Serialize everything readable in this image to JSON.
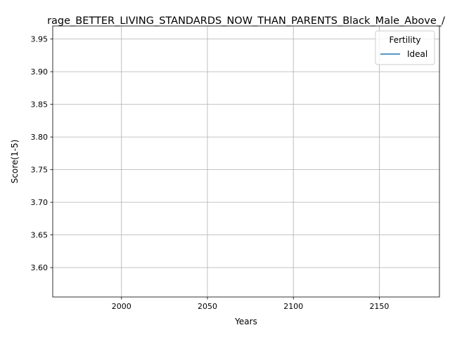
{
  "chart_data": {
    "type": "line",
    "title": "rage_BETTER_LIVING_STANDARDS_NOW_THAN_PARENTS_Black_Male_Above_/",
    "xlabel": "Years",
    "ylabel": "Score(1-5)",
    "xlim": [
      1960,
      2185
    ],
    "ylim": [
      3.555,
      3.97
    ],
    "xticks": [
      2000,
      2050,
      2100,
      2150
    ],
    "xtick_labels": [
      "2000",
      "2050",
      "2100",
      "2150"
    ],
    "yticks": [
      3.6,
      3.65,
      3.7,
      3.75,
      3.8,
      3.85,
      3.9,
      3.95
    ],
    "ytick_labels": [
      "3.60",
      "3.65",
      "3.70",
      "3.75",
      "3.80",
      "3.85",
      "3.90",
      "3.95"
    ],
    "grid": true,
    "legend": {
      "title": "Fertility",
      "placement": "top-right"
    },
    "series": [
      {
        "name": "Ideal",
        "color": "#1f77b4",
        "x": [],
        "y": []
      }
    ]
  }
}
